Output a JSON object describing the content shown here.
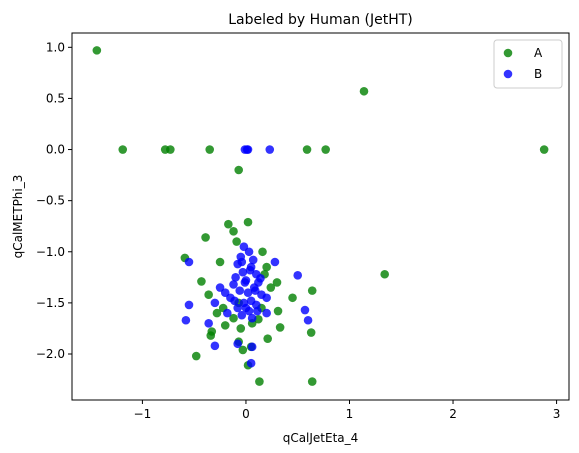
{
  "chart_data": {
    "type": "scatter",
    "title": "Labeled by Human (JetHT)",
    "xlabel": "qCalJetEta_4",
    "ylabel": "qCalMETPhi_3",
    "xlim": [
      -1.68,
      3.12
    ],
    "ylim": [
      -2.45,
      1.14
    ],
    "x_ticks": [
      -1,
      0,
      1,
      2,
      3
    ],
    "y_ticks": [
      -2.0,
      -1.5,
      -1.0,
      -0.5,
      0.0,
      0.5,
      1.0
    ],
    "x_tick_labels": [
      "−1",
      "0",
      "1",
      "2",
      "3"
    ],
    "y_tick_labels": [
      "−2.0",
      "−1.5",
      "−1.0",
      "−0.5",
      "0.0",
      "0.5",
      "1.0"
    ],
    "grid": false,
    "legend_position": "top-right",
    "series": [
      {
        "name": "A",
        "color": "#008000",
        "points": [
          [
            -1.44,
            0.97
          ],
          [
            1.14,
            0.57
          ],
          [
            2.88,
            0.0
          ],
          [
            -1.19,
            0.0
          ],
          [
            -0.78,
            0.0
          ],
          [
            -0.73,
            0.0
          ],
          [
            -0.35,
            0.0
          ],
          [
            0.59,
            0.0
          ],
          [
            0.77,
            0.0
          ],
          [
            -0.07,
            -0.2
          ],
          [
            0.02,
            -0.71
          ],
          [
            -0.17,
            -0.73
          ],
          [
            -0.12,
            -0.8
          ],
          [
            -0.39,
            -0.86
          ],
          [
            -0.09,
            -0.9
          ],
          [
            0.16,
            -1.0
          ],
          [
            -0.59,
            -1.06
          ],
          [
            -0.25,
            -1.1
          ],
          [
            0.2,
            -1.15
          ],
          [
            0.18,
            -1.22
          ],
          [
            1.34,
            -1.22
          ],
          [
            -0.43,
            -1.29
          ],
          [
            0.3,
            -1.3
          ],
          [
            0.24,
            -1.35
          ],
          [
            0.64,
            -1.38
          ],
          [
            -0.36,
            -1.42
          ],
          [
            0.45,
            -1.45
          ],
          [
            -0.07,
            -1.5
          ],
          [
            0.15,
            -1.55
          ],
          [
            0.31,
            -1.58
          ],
          [
            -0.28,
            -1.6
          ],
          [
            -0.12,
            -1.65
          ],
          [
            0.12,
            -1.66
          ],
          [
            0.06,
            -1.7
          ],
          [
            -0.2,
            -1.72
          ],
          [
            0.33,
            -1.74
          ],
          [
            -0.33,
            -1.78
          ],
          [
            0.63,
            -1.79
          ],
          [
            -0.34,
            -1.82
          ],
          [
            0.21,
            -1.85
          ],
          [
            -0.07,
            -1.88
          ],
          [
            0.05,
            -1.93
          ],
          [
            -0.03,
            -1.96
          ],
          [
            -0.48,
            -2.02
          ],
          [
            0.02,
            -2.11
          ],
          [
            0.13,
            -2.27
          ],
          [
            0.64,
            -2.27
          ],
          [
            -0.22,
            -1.55
          ],
          [
            -0.05,
            -1.75
          ]
        ]
      },
      {
        "name": "B",
        "color": "#0000ff",
        "points": [
          [
            -0.01,
            0.0
          ],
          [
            0.02,
            0.0
          ],
          [
            0.01,
            0.0
          ],
          [
            0.23,
            0.0
          ],
          [
            -0.02,
            -0.95
          ],
          [
            0.03,
            -1.0
          ],
          [
            -0.05,
            -1.05
          ],
          [
            0.07,
            -1.08
          ],
          [
            -0.08,
            -1.12
          ],
          [
            0.05,
            -1.15
          ],
          [
            -0.03,
            -1.2
          ],
          [
            0.1,
            -1.22
          ],
          [
            -0.1,
            -1.25
          ],
          [
            0.0,
            -1.28
          ],
          [
            0.12,
            -1.3
          ],
          [
            -0.12,
            -1.32
          ],
          [
            0.08,
            -1.35
          ],
          [
            -0.06,
            -1.38
          ],
          [
            0.02,
            -1.4
          ],
          [
            0.15,
            -1.42
          ],
          [
            -0.15,
            -1.45
          ],
          [
            0.05,
            -1.48
          ],
          [
            -0.02,
            -1.5
          ],
          [
            0.1,
            -1.52
          ],
          [
            -0.08,
            -1.55
          ],
          [
            0.2,
            -1.45
          ],
          [
            -0.2,
            -1.4
          ],
          [
            0.03,
            -1.58
          ],
          [
            -0.04,
            -1.62
          ],
          [
            0.06,
            -1.65
          ],
          [
            0.28,
            -1.1
          ],
          [
            0.5,
            -1.23
          ],
          [
            0.2,
            -1.6
          ],
          [
            -0.18,
            -1.6
          ],
          [
            -0.25,
            -1.35
          ],
          [
            -0.3,
            -1.5
          ],
          [
            -0.55,
            -1.1
          ],
          [
            -0.55,
            -1.52
          ],
          [
            -0.58,
            -1.67
          ],
          [
            -0.36,
            -1.7
          ],
          [
            -0.3,
            -1.92
          ],
          [
            -0.08,
            -1.9
          ],
          [
            0.06,
            -1.93
          ],
          [
            0.05,
            -2.09
          ],
          [
            0.57,
            -1.57
          ],
          [
            0.6,
            -1.67
          ],
          [
            -0.01,
            -1.3
          ],
          [
            0.04,
            -1.18
          ],
          [
            -0.04,
            -1.1
          ],
          [
            0.09,
            -1.38
          ],
          [
            -0.11,
            -1.48
          ],
          [
            0.14,
            -1.26
          ],
          [
            0.0,
            -1.55
          ],
          [
            0.11,
            -1.58
          ]
        ]
      }
    ]
  }
}
